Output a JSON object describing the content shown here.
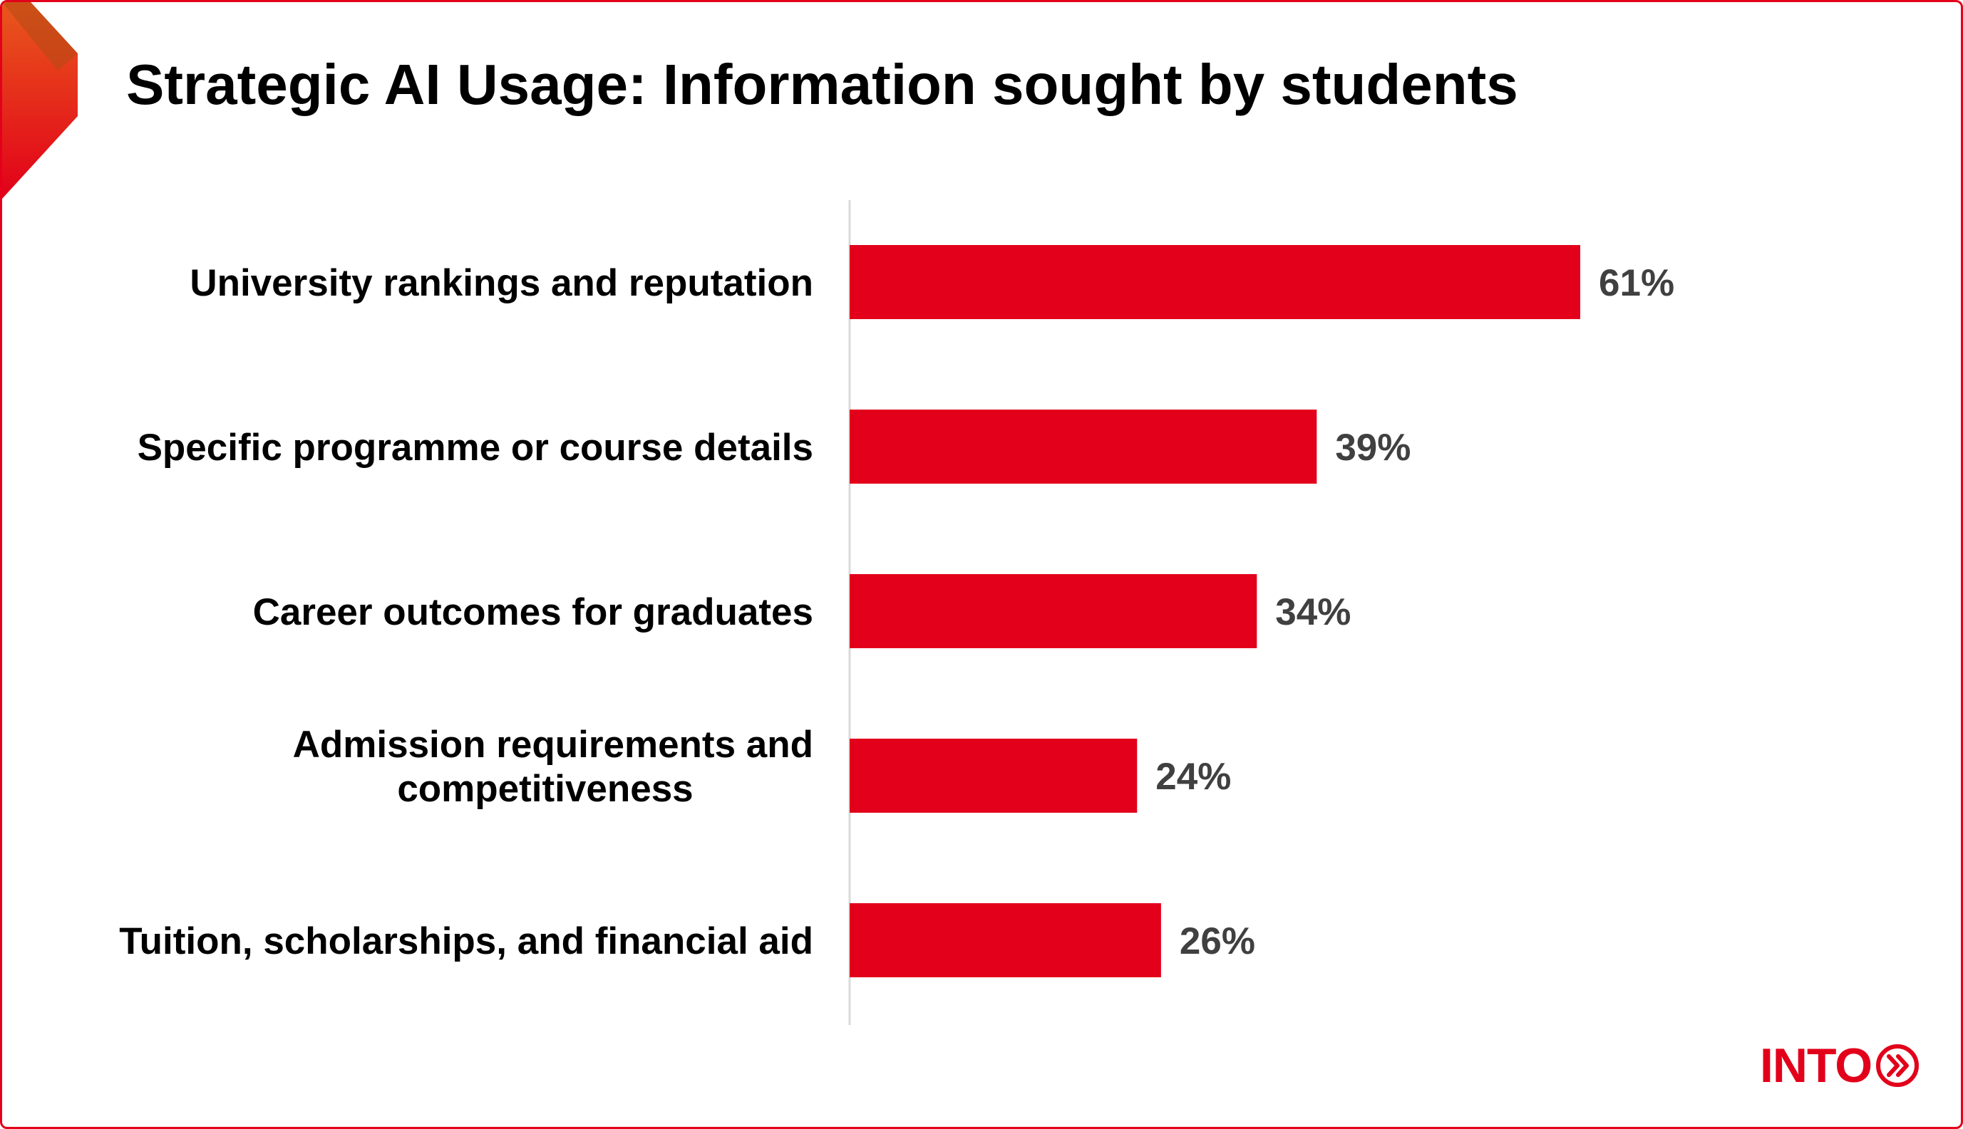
{
  "title": "Strategic AI Usage: Information sought by students",
  "logo": {
    "text": "INTO"
  },
  "colors": {
    "accent": "#e2001a",
    "bar": "#e2001a",
    "value_text": "#404040",
    "axis": "#d9d9d9"
  },
  "icons": {
    "corner": "chevron-right-icon",
    "logo_mark": "double-chevron-circle-icon"
  },
  "chart_data": {
    "type": "bar",
    "orientation": "horizontal",
    "categories": [
      [
        "University rankings and reputation"
      ],
      [
        "Specific programme or course details"
      ],
      [
        "Career outcomes for graduates"
      ],
      [
        "Admission requirements and",
        "competitiveness"
      ],
      [
        "Tuition, scholarships, and financial aid"
      ]
    ],
    "values": [
      61,
      39,
      34,
      24,
      26
    ],
    "value_labels": [
      "61%",
      "39%",
      "34%",
      "24%",
      "26%"
    ],
    "xlim": [
      0,
      100
    ],
    "grid": false,
    "legend": "none"
  }
}
